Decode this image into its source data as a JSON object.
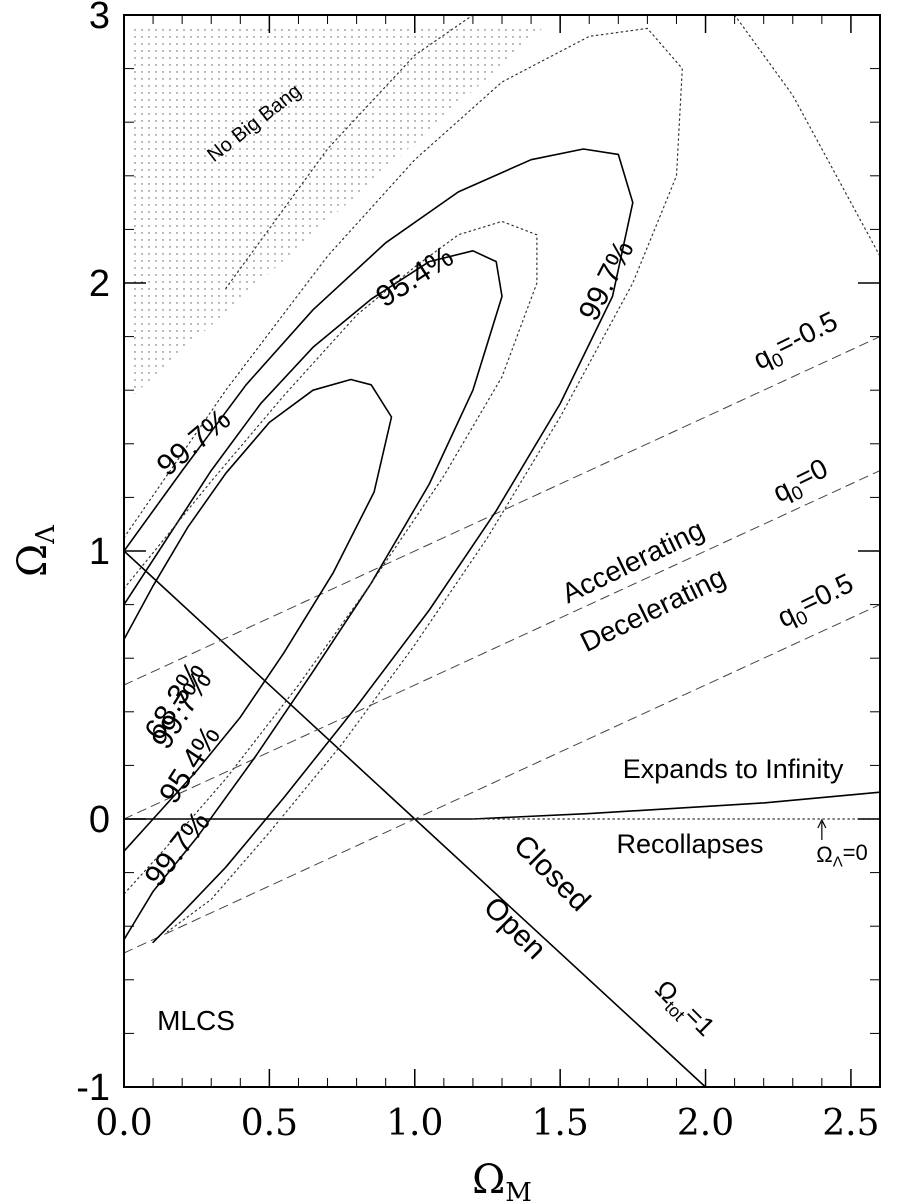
{
  "chart_data": {
    "type": "line",
    "title": "",
    "xlabel": "Ω",
    "xlabel_sub": "M",
    "ylabel": "Ω",
    "ylabel_sub": "Λ",
    "xlim": [
      0.0,
      2.6
    ],
    "ylim": [
      -1.0,
      3.0
    ],
    "x_ticks": [
      0.0,
      0.5,
      1.0,
      1.5,
      2.0,
      2.5
    ],
    "x_tick_labels": [
      "0.0",
      "0.5",
      "1.0",
      "1.5",
      "2.0",
      "2.5"
    ],
    "y_ticks": [
      -1,
      0,
      1,
      2,
      3
    ],
    "y_tick_labels": [
      "-1",
      "0",
      "1",
      "2",
      "3"
    ],
    "grid": false,
    "legend": "none",
    "series": [
      {
        "style": "solid",
        "points": [
          [
            0.0,
            1.0
          ],
          [
            2.0,
            -1.0
          ]
        ]
      },
      {
        "style": "solid",
        "points": [
          [
            0.0,
            0.0
          ],
          [
            1.2,
            0.0
          ],
          [
            1.6,
            0.02
          ],
          [
            2.2,
            0.06
          ],
          [
            2.6,
            0.1
          ]
        ]
      },
      {
        "style": "dashed",
        "points": [
          [
            0.0,
            0.0
          ],
          [
            2.6,
            1.3
          ]
        ]
      },
      {
        "style": "dashed",
        "points": [
          [
            0.0,
            -0.5
          ],
          [
            2.6,
            0.8
          ]
        ]
      },
      {
        "style": "dashed",
        "points": [
          [
            0.0,
            0.5
          ],
          [
            2.6,
            1.8
          ]
        ]
      },
      {
        "style": "dotted",
        "points": [
          [
            1.2,
            0.0
          ],
          [
            2.6,
            0.0
          ]
        ]
      },
      {
        "style": "solid",
        "points": [
          [
            0.0,
            0.67
          ],
          [
            0.1,
            0.87
          ],
          [
            0.22,
            1.09
          ],
          [
            0.35,
            1.29
          ],
          [
            0.5,
            1.48
          ],
          [
            0.65,
            1.6
          ],
          [
            0.78,
            1.64
          ],
          [
            0.85,
            1.62
          ],
          [
            0.92,
            1.5
          ],
          [
            0.86,
            1.22
          ],
          [
            0.72,
            0.92
          ],
          [
            0.55,
            0.62
          ],
          [
            0.4,
            0.38
          ],
          [
            0.25,
            0.18
          ],
          [
            0.1,
            0.0
          ],
          [
            0.0,
            -0.12
          ]
        ]
      },
      {
        "style": "solid",
        "points": [
          [
            0.0,
            0.8
          ],
          [
            0.15,
            1.05
          ],
          [
            0.3,
            1.3
          ],
          [
            0.47,
            1.55
          ],
          [
            0.65,
            1.76
          ],
          [
            0.85,
            1.94
          ],
          [
            1.05,
            2.08
          ],
          [
            1.2,
            2.12
          ],
          [
            1.28,
            2.08
          ],
          [
            1.3,
            1.95
          ],
          [
            1.2,
            1.6
          ],
          [
            1.05,
            1.25
          ],
          [
            0.85,
            0.88
          ],
          [
            0.65,
            0.55
          ],
          [
            0.45,
            0.23
          ],
          [
            0.25,
            -0.07
          ],
          [
            0.1,
            -0.27
          ],
          [
            0.0,
            -0.45
          ]
        ]
      },
      {
        "style": "solid",
        "points": [
          [
            0.0,
            1.0
          ],
          [
            0.2,
            1.3
          ],
          [
            0.42,
            1.62
          ],
          [
            0.65,
            1.9
          ],
          [
            0.9,
            2.15
          ],
          [
            1.15,
            2.34
          ],
          [
            1.4,
            2.46
          ],
          [
            1.58,
            2.5
          ],
          [
            1.7,
            2.48
          ],
          [
            1.75,
            2.3
          ],
          [
            1.68,
            1.95
          ],
          [
            1.5,
            1.55
          ],
          [
            1.28,
            1.15
          ],
          [
            1.05,
            0.78
          ],
          [
            0.8,
            0.42
          ],
          [
            0.55,
            0.08
          ],
          [
            0.35,
            -0.18
          ],
          [
            0.2,
            -0.35
          ],
          [
            0.1,
            -0.46
          ]
        ]
      },
      {
        "style": "dotted",
        "points": [
          [
            0.0,
            0.86
          ],
          [
            0.3,
            1.26
          ],
          [
            0.55,
            1.58
          ],
          [
            0.8,
            1.88
          ],
          [
            1.0,
            2.06
          ],
          [
            1.15,
            2.18
          ],
          [
            1.3,
            2.23
          ],
          [
            1.42,
            2.18
          ],
          [
            1.42,
            2.0
          ],
          [
            1.3,
            1.65
          ],
          [
            1.1,
            1.28
          ],
          [
            0.85,
            0.88
          ],
          [
            0.6,
            0.5
          ],
          [
            0.35,
            0.15
          ],
          [
            0.15,
            -0.1
          ],
          [
            0.0,
            -0.28
          ]
        ]
      },
      {
        "style": "dotted",
        "points": [
          [
            0.0,
            1.05
          ],
          [
            0.35,
            1.6
          ],
          [
            0.7,
            2.1
          ],
          [
            1.0,
            2.46
          ],
          [
            1.3,
            2.75
          ],
          [
            1.6,
            2.92
          ],
          [
            1.8,
            2.95
          ],
          [
            1.92,
            2.8
          ],
          [
            1.9,
            2.4
          ],
          [
            1.75,
            2.0
          ],
          [
            1.5,
            1.5
          ],
          [
            1.25,
            1.05
          ],
          [
            1.0,
            0.65
          ],
          [
            0.75,
            0.28
          ],
          [
            0.5,
            -0.05
          ],
          [
            0.3,
            -0.3
          ],
          [
            0.15,
            -0.42
          ]
        ]
      },
      {
        "style": "dotted",
        "points": [
          [
            0.35,
            1.98
          ],
          [
            0.7,
            2.5
          ],
          [
            1.0,
            2.85
          ],
          [
            1.2,
            3.0
          ]
        ]
      },
      {
        "style": "dotted",
        "points": [
          [
            2.1,
            3.0
          ],
          [
            2.3,
            2.7
          ],
          [
            2.45,
            2.4
          ],
          [
            2.6,
            2.1
          ]
        ]
      }
    ],
    "annotations": [
      {
        "text": "No Big Bang"
      },
      {
        "text": "99.7%"
      },
      {
        "text": "95.4%"
      },
      {
        "text": "99.7%"
      },
      {
        "text": "99.7%"
      },
      {
        "text": "68.3%"
      },
      {
        "text": "95.4%"
      },
      {
        "text": "99.7%"
      },
      {
        "text": "q",
        "sub": "0",
        "rest": "=-0.5"
      },
      {
        "text": "q",
        "sub": "0",
        "rest": "=0"
      },
      {
        "text": "q",
        "sub": "0",
        "rest": "=0.5"
      },
      {
        "text": "Accelerating"
      },
      {
        "text": "Decelerating"
      },
      {
        "text": "Expands to Infinity"
      },
      {
        "text": "Recollapses"
      },
      {
        "text": "Ω",
        "sub": "Λ",
        "rest": "=0"
      },
      {
        "text": "Closed"
      },
      {
        "text": "Open"
      },
      {
        "text": "Ω",
        "sub": "tot",
        "rest": "=1"
      },
      {
        "text": "MLCS"
      }
    ]
  }
}
